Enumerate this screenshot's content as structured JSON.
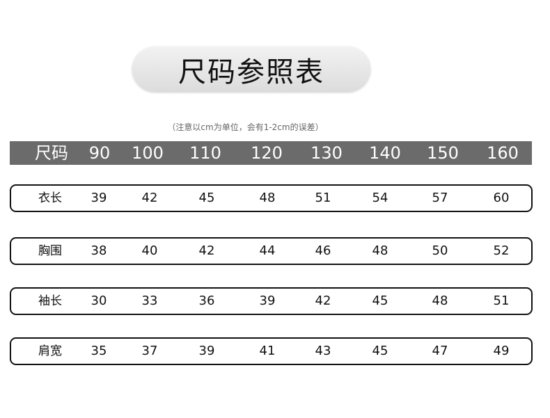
{
  "title": "尺码参照表",
  "note": "（注意以cm为单位，会有1-2cm的误差）",
  "header": {
    "label": "尺码",
    "sizes": [
      "90",
      "100",
      "110",
      "120",
      "130",
      "140",
      "150",
      "160"
    ]
  },
  "rows": [
    {
      "label": "衣长",
      "values": [
        "39",
        "42",
        "45",
        "48",
        "51",
        "54",
        "57",
        "60"
      ]
    },
    {
      "label": "胸围",
      "values": [
        "38",
        "40",
        "42",
        "44",
        "46",
        "48",
        "50",
        "52"
      ]
    },
    {
      "label": "袖长",
      "values": [
        "30",
        "33",
        "36",
        "39",
        "42",
        "45",
        "48",
        "51"
      ]
    },
    {
      "label": "肩宽",
      "values": [
        "35",
        "37",
        "39",
        "41",
        "43",
        "45",
        "47",
        "49"
      ]
    }
  ]
}
